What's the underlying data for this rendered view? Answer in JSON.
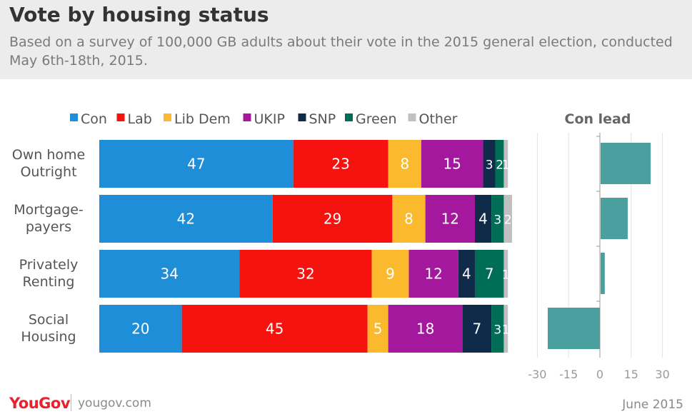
{
  "header": {
    "title": "Vote by housing status",
    "subtitle": "Based on a survey of 100,000 GB adults about their vote in the 2015 general election, conducted May 6th-18th, 2015."
  },
  "footer": {
    "logo": "YouGov",
    "url": "yougov.com",
    "date": "June 2015"
  },
  "chart_data": [
    {
      "type": "bar",
      "orientation": "horizontal",
      "stacked": true,
      "legend_position": "top",
      "categories": [
        [
          "Own home",
          "Outright"
        ],
        [
          "Mortgage-",
          "payers"
        ],
        [
          "Privately",
          "Renting"
        ],
        [
          "Social",
          "Housing"
        ]
      ],
      "series": [
        {
          "name": "Con",
          "color": "#1f8ed8",
          "values": [
            47,
            42,
            34,
            20
          ]
        },
        {
          "name": "Lab",
          "color": "#f5120f",
          "values": [
            23,
            29,
            32,
            45
          ]
        },
        {
          "name": "Lib Dem",
          "color": "#fbba2e",
          "values": [
            8,
            8,
            9,
            5
          ]
        },
        {
          "name": "UKIP",
          "color": "#a4189e",
          "values": [
            15,
            12,
            12,
            18
          ]
        },
        {
          "name": "SNP",
          "color": "#102b49",
          "values": [
            3,
            4,
            4,
            7
          ]
        },
        {
          "name": "Green",
          "color": "#006e57",
          "values": [
            2,
            3,
            7,
            3
          ]
        },
        {
          "name": "Other",
          "color": "#c0c0c0",
          "values": [
            1,
            2,
            1,
            1
          ]
        }
      ]
    },
    {
      "type": "bar",
      "orientation": "horizontal",
      "title": "Con lead",
      "color": "#4a9f9f",
      "categories": [
        [
          "Own home",
          "Outright"
        ],
        [
          "Mortgage-",
          "payers"
        ],
        [
          "Privately",
          "Renting"
        ],
        [
          "Social",
          "Housing"
        ]
      ],
      "values": [
        24,
        13,
        2,
        -25
      ],
      "xlim": [
        -30,
        30
      ],
      "xticks": [
        -30,
        -15,
        0,
        15,
        30
      ],
      "grid": true
    }
  ]
}
